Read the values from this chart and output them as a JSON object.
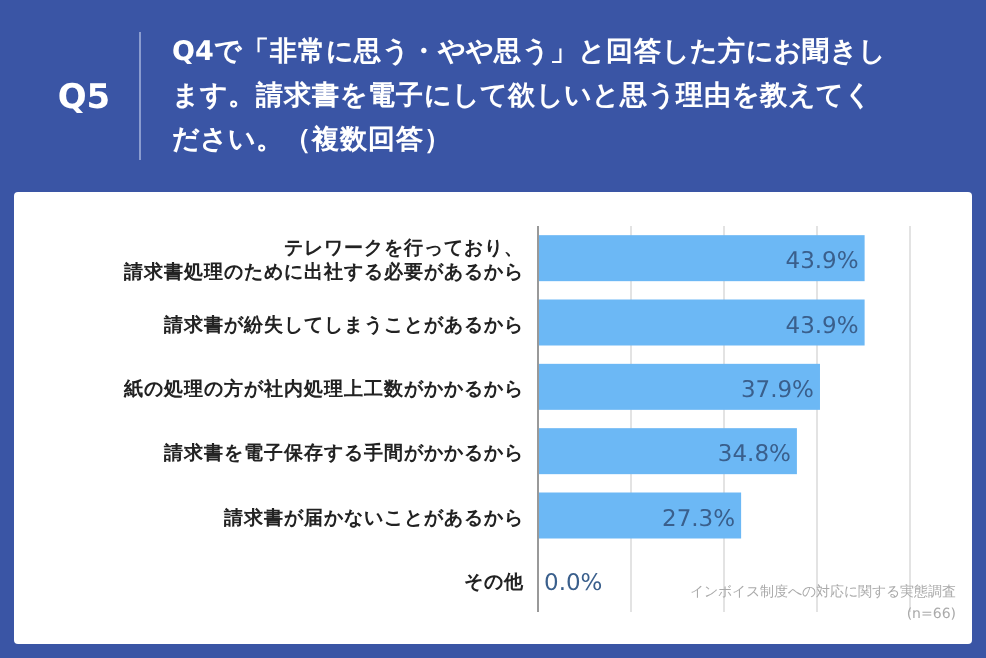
{
  "chart_data": {
    "type": "bar",
    "orientation": "horizontal",
    "title": "Q5",
    "subtitle": "Q4で「非常に思う・やや思う」と回答した方にお聞きします。請求書を電子にして欲しいと思う理由を教えてください。（複数回答）",
    "categories": [
      "テレワークを行っており、請求書処理のために出社する必要があるから",
      "請求書が紛失してしまうことがあるから",
      "紙の処理の方が社内処理上工数がかかるから",
      "請求書を電子保存する手間がかかるから",
      "請求書が届かないことがあるから",
      "その他"
    ],
    "values": [
      43.9,
      43.9,
      37.9,
      34.8,
      27.3,
      0.0
    ],
    "value_labels": [
      "43.9%",
      "43.9%",
      "37.9%",
      "34.8%",
      "27.3%",
      "0.0%"
    ],
    "color": "#6cb8f5",
    "xlim": [
      0,
      50
    ],
    "xticks": [
      {
        "value": 0,
        "label": null
      },
      {
        "value": 12.5,
        "label": null
      },
      {
        "value": 25,
        "label": null
      },
      {
        "value": 37.5,
        "label": null
      },
      {
        "value": 50,
        "label": null
      }
    ],
    "grid": "x",
    "annotations": [
      "インボイス制度への対応に関する実態調査",
      "(n=66)"
    ]
  }
}
